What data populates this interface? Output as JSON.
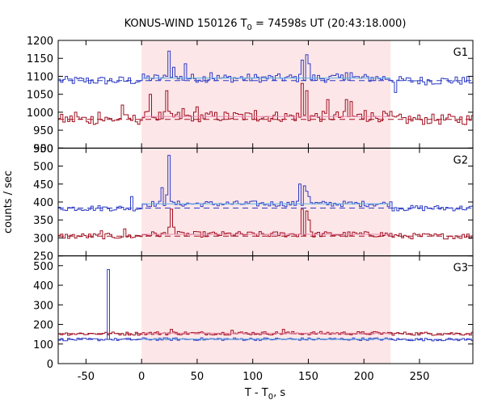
{
  "chart_data": {
    "type": "line",
    "title_main": "KONUS-WIND 150126 T",
    "title_sub": "0",
    "title_rest": " = 74598s UT (20:43:18.000)",
    "xlabel_main": "T - T",
    "xlabel_sub": "0",
    "xlabel_rest": ", s",
    "ylabel": "counts / sec",
    "xlim": [
      -75,
      298
    ],
    "xticks": [
      -50,
      0,
      50,
      100,
      150,
      200,
      250
    ],
    "grid": false,
    "shaded_interval": [
      0,
      224
    ],
    "colors": {
      "shade": "#fde6e8",
      "blue": "#2e3cc4",
      "blue_fit": "#56b0e6",
      "red": "#a01020",
      "red_fit": "#e888ac"
    },
    "panels": [
      {
        "label": "G1",
        "ylim": [
          900,
          1200
        ],
        "yticks": [
          900,
          950,
          1000,
          1050,
          1100,
          1150,
          1200
        ],
        "series": [
          {
            "color": "blue",
            "fit_color": "blue_fit",
            "baseline": 1088,
            "burst_level": 1095,
            "noise": 12,
            "spikes": [
              [
                24,
                1170
              ],
              [
                27,
                1125
              ],
              [
                37,
                1135
              ],
              [
                60,
                1110
              ],
              [
                142,
                1145
              ],
              [
                146,
                1160
              ],
              [
                150,
                1135
              ],
              [
                183,
                1110
              ],
              [
                187,
                1110
              ],
              [
                226,
                1055
              ]
            ]
          },
          {
            "color": "red",
            "fit_color": "red_fit",
            "baseline": 980,
            "burst_level": 988,
            "noise": 15,
            "spikes": [
              [
                -60,
                1000
              ],
              [
                -40,
                1000
              ],
              [
                -18,
                1020
              ],
              [
                7,
                1050
              ],
              [
                20,
                1040
              ],
              [
                22,
                1060
              ],
              [
                36,
                1010
              ],
              [
                48,
                1015
              ],
              [
                100,
                1005
              ],
              [
                142,
                1080
              ],
              [
                146,
                1060
              ],
              [
                165,
                1035
              ],
              [
                182,
                1035
              ],
              [
                186,
                1030
              ],
              [
                200,
                1005
              ]
            ]
          }
        ]
      },
      {
        "label": "G2",
        "ylim": [
          250,
          550
        ],
        "yticks": [
          250,
          300,
          350,
          400,
          450,
          500,
          550
        ],
        "series": [
          {
            "color": "blue",
            "fit_color": "blue_fit",
            "baseline": 383,
            "burst_level": 395,
            "noise": 8,
            "spikes": [
              [
                -10,
                415
              ],
              [
                17,
                440
              ],
              [
                22,
                420
              ],
              [
                24,
                530
              ],
              [
                141,
                450
              ],
              [
                144,
                445
              ],
              [
                147,
                430
              ],
              [
                150,
                415
              ]
            ]
          },
          {
            "color": "red",
            "fit_color": "red_fit",
            "baseline": 305,
            "burst_level": 310,
            "noise": 8,
            "spikes": [
              [
                -38,
                320
              ],
              [
                -17,
                325
              ],
              [
                23,
                330
              ],
              [
                25,
                380
              ],
              [
                28,
                330
              ],
              [
                143,
                380
              ],
              [
                147,
                375
              ],
              [
                150,
                350
              ]
            ]
          }
        ]
      },
      {
        "label": "G3",
        "ylim": [
          0,
          550
        ],
        "yticks": [
          0,
          100,
          200,
          300,
          400,
          500
        ],
        "series": [
          {
            "color": "red",
            "fit_color": "red_fit",
            "baseline": 153,
            "burst_level": 155,
            "noise": 9,
            "spikes": [
              [
                25,
                175
              ],
              [
                80,
                170
              ],
              [
                125,
                175
              ]
            ]
          },
          {
            "color": "blue",
            "fit_color": "blue_fit",
            "baseline": 123,
            "burst_level": 125,
            "noise": 7,
            "spikes": [
              [
                -32,
                480
              ]
            ]
          }
        ]
      }
    ]
  }
}
